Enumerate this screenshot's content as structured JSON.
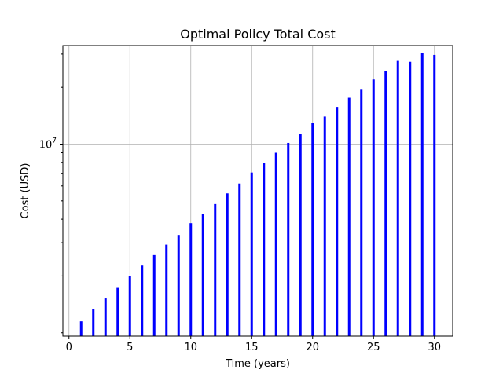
{
  "chart_data": {
    "type": "bar",
    "title": "Optimal Policy Total Cost",
    "xlabel": "Time (years)",
    "ylabel": "Cost (USD)",
    "y_scale": "log",
    "grid": true,
    "color": "#0000ff",
    "x": [
      1,
      2,
      3,
      4,
      5,
      6,
      7,
      8,
      9,
      10,
      11,
      12,
      13,
      14,
      15,
      16,
      17,
      18,
      19,
      20,
      21,
      22,
      23,
      24,
      25,
      26,
      27,
      28,
      29,
      30
    ],
    "values": [
      1150000,
      1340000,
      1520000,
      1730000,
      2000000,
      2270000,
      2580000,
      2930000,
      3300000,
      3810000,
      4270000,
      4810000,
      5480000,
      6180000,
      7070000,
      7950000,
      9000000,
      10150000,
      11350000,
      12900000,
      14000000,
      15750000,
      17600000,
      19600000,
      22000000,
      24500000,
      27600000,
      27300000,
      30400000,
      29700000
    ],
    "xlim": [
      -0.5,
      31.5
    ],
    "ylim": [
      960000,
      33300000
    ],
    "x_ticks": [
      0,
      5,
      10,
      15,
      20,
      25,
      30
    ],
    "y_major_ticks": [
      {
        "value": 10000000,
        "base": "10",
        "exp": "7"
      }
    ]
  }
}
